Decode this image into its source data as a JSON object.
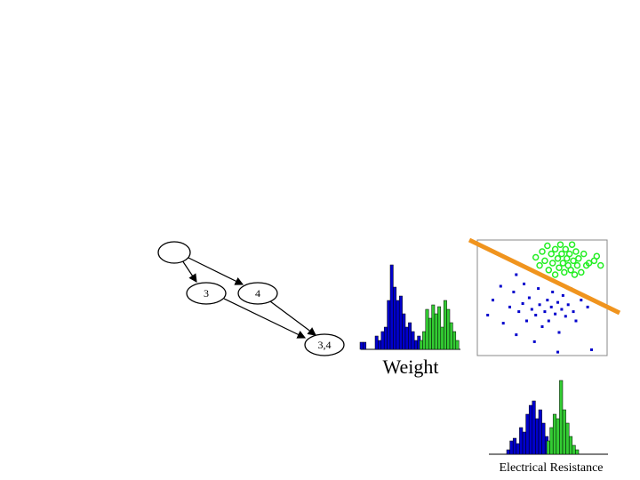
{
  "graph": {
    "nodes": [
      {
        "label": "3"
      },
      {
        "label": "4"
      },
      {
        "label": "3,4"
      }
    ]
  },
  "weight_histogram": {
    "label": "Weight",
    "series": [
      {
        "color": "#0000cc",
        "values": [
          8,
          8,
          0,
          0,
          0,
          15,
          10,
          20,
          25,
          55,
          95,
          70,
          55,
          60,
          40,
          25,
          30,
          20,
          10,
          15,
          5
        ]
      },
      {
        "color": "#33cc33",
        "values": [
          10,
          20,
          45,
          35,
          50,
          40,
          48,
          25,
          55,
          45,
          30,
          20,
          10
        ]
      }
    ]
  },
  "scatter": {
    "xlim": [
      0,
      100
    ],
    "ylim": [
      0,
      100
    ],
    "series": [
      {
        "color": "#0000cc",
        "points": [
          [
            8,
            35
          ],
          [
            12,
            48
          ],
          [
            18,
            60
          ],
          [
            20,
            28
          ],
          [
            25,
            42
          ],
          [
            28,
            55
          ],
          [
            30,
            18
          ],
          [
            32,
            38
          ],
          [
            35,
            45
          ],
          [
            36,
            62
          ],
          [
            38,
            30
          ],
          [
            40,
            50
          ],
          [
            42,
            40
          ],
          [
            44,
            12
          ],
          [
            45,
            35
          ],
          [
            47,
            58
          ],
          [
            48,
            44
          ],
          [
            50,
            25
          ],
          [
            52,
            38
          ],
          [
            54,
            48
          ],
          [
            55,
            30
          ],
          [
            57,
            42
          ],
          [
            58,
            55
          ],
          [
            60,
            36
          ],
          [
            62,
            46
          ],
          [
            63,
            20
          ],
          [
            65,
            40
          ],
          [
            66,
            52
          ],
          [
            68,
            34
          ],
          [
            70,
            44
          ],
          [
            72,
            58
          ],
          [
            74,
            38
          ],
          [
            76,
            30
          ],
          [
            80,
            48
          ],
          [
            85,
            42
          ],
          [
            88,
            5
          ],
          [
            62,
            3
          ],
          [
            30,
            70
          ]
        ]
      },
      {
        "color": "#22ee22",
        "points": [
          [
            45,
            85
          ],
          [
            48,
            78
          ],
          [
            50,
            90
          ],
          [
            52,
            82
          ],
          [
            54,
            95
          ],
          [
            55,
            74
          ],
          [
            57,
            88
          ],
          [
            58,
            80
          ],
          [
            60,
            92
          ],
          [
            60,
            70
          ],
          [
            62,
            84
          ],
          [
            63,
            76
          ],
          [
            64,
            96
          ],
          [
            65,
            88
          ],
          [
            66,
            80
          ],
          [
            67,
            72
          ],
          [
            68,
            92
          ],
          [
            69,
            84
          ],
          [
            70,
            78
          ],
          [
            71,
            88
          ],
          [
            72,
            74
          ],
          [
            73,
            96
          ],
          [
            74,
            82
          ],
          [
            75,
            70
          ],
          [
            76,
            90
          ],
          [
            77,
            78
          ],
          [
            78,
            84
          ],
          [
            80,
            72
          ],
          [
            82,
            88
          ],
          [
            84,
            78
          ],
          [
            86,
            80
          ],
          [
            90,
            82
          ],
          [
            95,
            78
          ],
          [
            92,
            86
          ]
        ]
      }
    ]
  },
  "resistance_histogram": {
    "label": "Electrical Resistance",
    "series": [
      {
        "color": "#0000cc",
        "values": [
          5,
          15,
          18,
          12,
          30,
          25,
          45,
          55,
          60,
          40,
          50,
          35,
          20,
          10,
          5
        ]
      },
      {
        "color": "#33cc33",
        "values": [
          15,
          30,
          45,
          40,
          83,
          50,
          35,
          20,
          10,
          5
        ]
      }
    ]
  }
}
